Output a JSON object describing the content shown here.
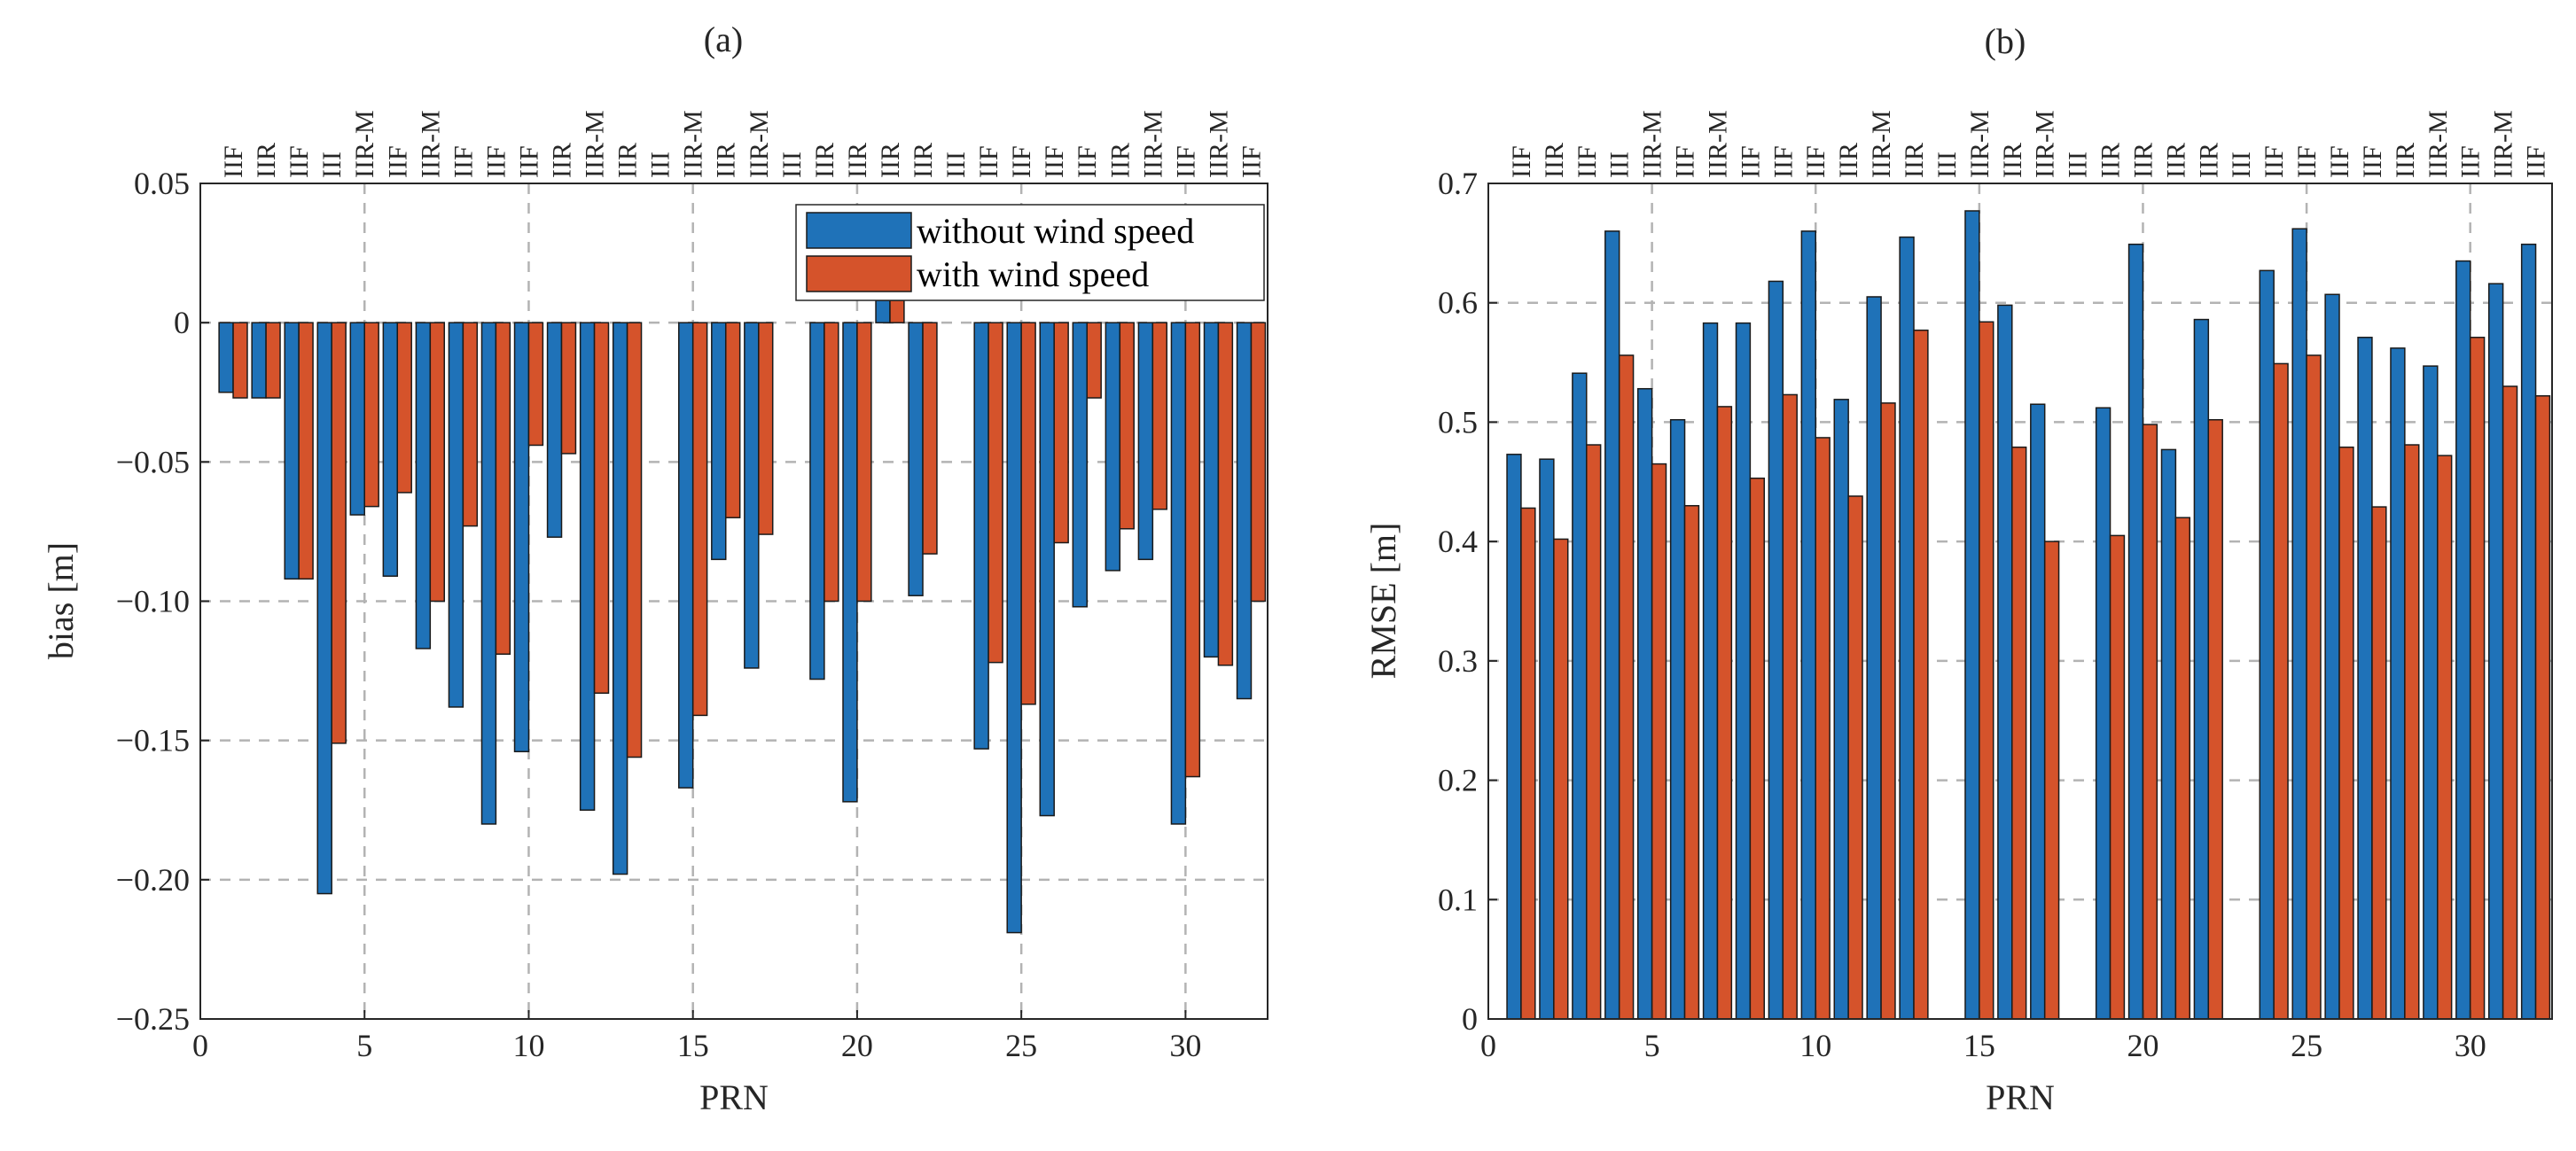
{
  "colors": {
    "series1": "#1f72b8",
    "series2": "#d5532b"
  },
  "prn": [
    1,
    2,
    3,
    4,
    5,
    6,
    7,
    8,
    9,
    10,
    11,
    12,
    13,
    14,
    15,
    16,
    17,
    18,
    19,
    20,
    21,
    22,
    23,
    24,
    25,
    26,
    27,
    28,
    29,
    30,
    31,
    32
  ],
  "blocks": [
    "IIF",
    "IIR",
    "IIF",
    "III",
    "IIR-M",
    "IIF",
    "IIR-M",
    "IIF",
    "IIF",
    "IIF",
    "IIR",
    "IIR-M",
    "IIR",
    "III",
    "IIR-M",
    "IIR",
    "IIR-M",
    "III",
    "IIR",
    "IIR",
    "IIR",
    "IIR",
    "III",
    "IIF",
    "IIF",
    "IIF",
    "IIF",
    "IIR",
    "IIR-M",
    "IIF",
    "IIR-M",
    "IIF"
  ],
  "chart_data": [
    {
      "type": "bar",
      "panel_label": "(a)",
      "xlabel": "PRN",
      "ylabel": "bias [m]",
      "xlim": [
        0,
        32.5
      ],
      "ylim": [
        -0.25,
        0.05
      ],
      "xticks": [
        0,
        5,
        10,
        15,
        20,
        25,
        30
      ],
      "xtick_labels": [
        "0",
        "5",
        "10",
        "15",
        "20",
        "25",
        "30"
      ],
      "yticks": [
        0.05,
        0,
        -0.05,
        -0.1,
        -0.15,
        -0.2,
        -0.25
      ],
      "ytick_labels": [
        "0.05",
        "0",
        "−0.05",
        "−0.10",
        "−0.15",
        "−0.20",
        "−0.25"
      ],
      "grid": true,
      "legend_position": "top-right",
      "series": [
        {
          "name": "without wind speed",
          "values": [
            -0.025,
            -0.027,
            -0.092,
            -0.205,
            -0.069,
            -0.091,
            -0.117,
            -0.138,
            -0.18,
            -0.154,
            -0.077,
            -0.175,
            -0.198,
            null,
            -0.167,
            -0.085,
            -0.124,
            null,
            -0.128,
            -0.172,
            0.008,
            -0.098,
            null,
            -0.153,
            -0.219,
            -0.177,
            -0.102,
            -0.089,
            -0.085,
            -0.18,
            -0.12,
            -0.135
          ]
        },
        {
          "name": "with wind speed",
          "values": [
            -0.027,
            -0.027,
            -0.092,
            -0.151,
            -0.066,
            -0.061,
            -0.1,
            -0.073,
            -0.119,
            -0.044,
            -0.047,
            -0.133,
            -0.156,
            null,
            -0.141,
            -0.07,
            -0.076,
            null,
            -0.1,
            -0.1,
            0.008,
            -0.083,
            null,
            -0.122,
            -0.137,
            -0.079,
            -0.027,
            -0.074,
            -0.067,
            -0.163,
            -0.123,
            -0.1
          ]
        }
      ]
    },
    {
      "type": "bar",
      "panel_label": "(b)",
      "xlabel": "PRN",
      "ylabel": "RMSE [m]",
      "xlim": [
        0,
        32.5
      ],
      "ylim": [
        0,
        0.7
      ],
      "xticks": [
        0,
        5,
        10,
        15,
        20,
        25,
        30
      ],
      "xtick_labels": [
        "0",
        "5",
        "10",
        "15",
        "20",
        "25",
        "30"
      ],
      "yticks": [
        0,
        0.1,
        0.2,
        0.3,
        0.4,
        0.5,
        0.6,
        0.7
      ],
      "ytick_labels": [
        "0",
        "0.1",
        "0.2",
        "0.3",
        "0.4",
        "0.5",
        "0.6",
        "0.7"
      ],
      "grid": true,
      "series": [
        {
          "name": "without wind speed",
          "values": [
            0.473,
            0.469,
            0.541,
            0.66,
            0.528,
            0.502,
            0.583,
            0.583,
            0.618,
            0.66,
            0.519,
            0.605,
            0.655,
            null,
            0.677,
            0.598,
            0.515,
            null,
            0.512,
            0.649,
            0.477,
            0.586,
            null,
            0.627,
            0.662,
            0.607,
            0.571,
            0.562,
            0.547,
            0.635,
            0.616,
            0.649
          ]
        },
        {
          "name": "with wind speed",
          "values": [
            0.428,
            0.402,
            0.481,
            0.556,
            0.465,
            0.43,
            0.513,
            0.453,
            0.523,
            0.487,
            0.438,
            0.516,
            0.577,
            null,
            0.584,
            0.479,
            0.4,
            null,
            0.405,
            0.498,
            0.42,
            0.502,
            null,
            0.549,
            0.556,
            0.479,
            0.429,
            0.481,
            0.472,
            0.571,
            0.53,
            0.522
          ]
        }
      ]
    }
  ]
}
